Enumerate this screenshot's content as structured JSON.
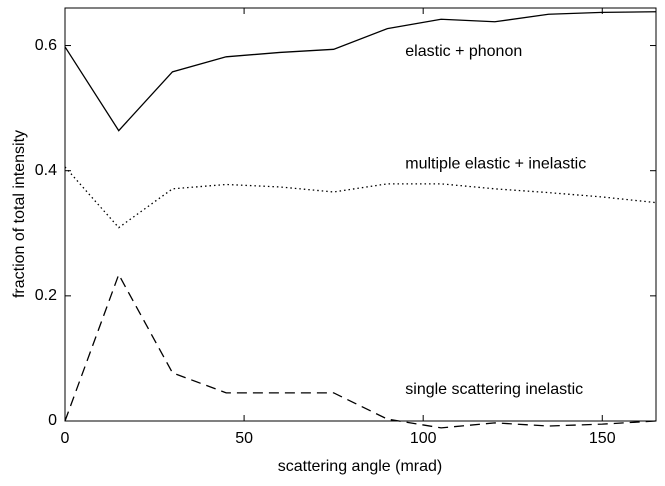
{
  "chart_data": {
    "type": "line",
    "x_label": "scattering angle (mrad)",
    "y_label": "fraction of total intensity",
    "x": [
      0,
      15,
      30,
      45,
      60,
      75,
      90,
      105,
      120,
      135,
      150,
      165
    ],
    "series": [
      {
        "color": "#000000",
        "dash": "solid",
        "values": [
          0.598,
          0.464,
          0.558,
          0.582,
          0.589,
          0.594,
          0.627,
          0.642,
          0.638,
          0.65,
          0.653,
          0.654
        ]
      },
      {
        "color": "#000000",
        "dash": "dotted",
        "values": [
          0.406,
          0.309,
          0.371,
          0.378,
          0.374,
          0.366,
          0.379,
          0.379,
          0.371,
          0.365,
          0.358,
          0.349
        ]
      },
      {
        "color": "#000000",
        "dash": "dashed",
        "values": [
          0,
          0.234,
          0.077,
          0.045,
          0.045,
          0.045,
          0.003,
          -0.011,
          -0.003,
          -0.008,
          -0.005,
          0
        ]
      }
    ],
    "annotations": [
      {
        "text": "elastic + phonon",
        "x": 95,
        "y": 0.59
      },
      {
        "text": "multiple elastic + inelastic",
        "x": 95,
        "y": 0.41
      },
      {
        "text": "single scattering inelastic",
        "x": 95,
        "y": 0.05
      }
    ],
    "xlim": [
      0,
      165
    ],
    "xticks": [
      0,
      50,
      100,
      150
    ],
    "ylim": [
      0,
      0.66
    ],
    "yticks": [
      0,
      0.2,
      0.4,
      0.6
    ]
  }
}
